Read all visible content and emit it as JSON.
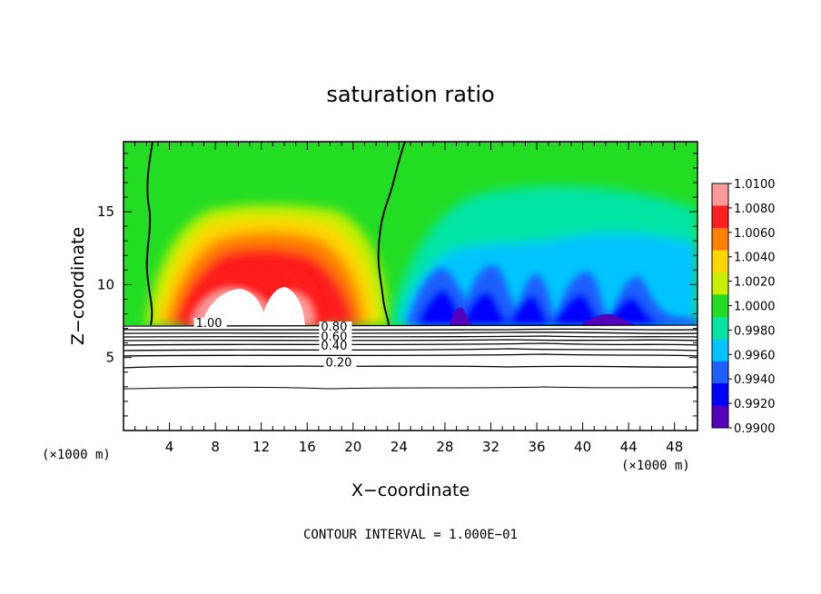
{
  "chart_data": {
    "type": "heatmap",
    "title": "saturation ratio",
    "xlabel": "X−coordinate",
    "ylabel": "Z−coordinate",
    "x_unit": "(×1000 m)",
    "z_unit": "(×1000 m)",
    "xlim": [
      0,
      50
    ],
    "ylim": [
      0,
      19.8
    ],
    "x_ticks": [
      4,
      8,
      12,
      16,
      20,
      24,
      28,
      32,
      36,
      40,
      44,
      48
    ],
    "x_tick_labels": [
      "4",
      "8",
      "12",
      "16",
      "20",
      "24",
      "28",
      "32",
      "36",
      "40",
      "44",
      "48"
    ],
    "y_ticks": [
      5,
      10,
      15
    ],
    "y_tick_labels": [
      "5",
      "10",
      "15"
    ],
    "footer": "CONTOUR INTERVAL = 1.000E−01",
    "colorbar": {
      "range": [
        0.99,
        1.01
      ],
      "labels": [
        "1.0100",
        "1.0080",
        "1.0060",
        "1.0040",
        "1.0020",
        "1.0000",
        "0.9980",
        "0.9960",
        "0.9940",
        "0.9920",
        "0.9900"
      ],
      "values": [
        1.01,
        1.008,
        1.006,
        1.004,
        1.002,
        1.0,
        0.998,
        0.996,
        0.994,
        0.992,
        0.99
      ],
      "colors": [
        "#ff9a9a",
        "#ff1f1f",
        "#ff7f00",
        "#ffd500",
        "#c8ef00",
        "#22dd22",
        "#00e4a4",
        "#00c4ff",
        "#1f5fff",
        "#0000ff",
        "#5500bb"
      ]
    },
    "contour_labels": [
      {
        "text": "1.00",
        "x": 6.3,
        "z": 7.1
      },
      {
        "text": "0.80",
        "x": 17.2,
        "z": 6.85
      },
      {
        "text": "0.60",
        "x": 17.2,
        "z": 6.15
      },
      {
        "text": "0.40",
        "x": 17.2,
        "z": 5.55
      },
      {
        "text": "0.20",
        "x": 17.6,
        "z": 4.4
      }
    ],
    "contour_levels": [
      0.2,
      0.4,
      0.6,
      0.8,
      1.0
    ]
  }
}
